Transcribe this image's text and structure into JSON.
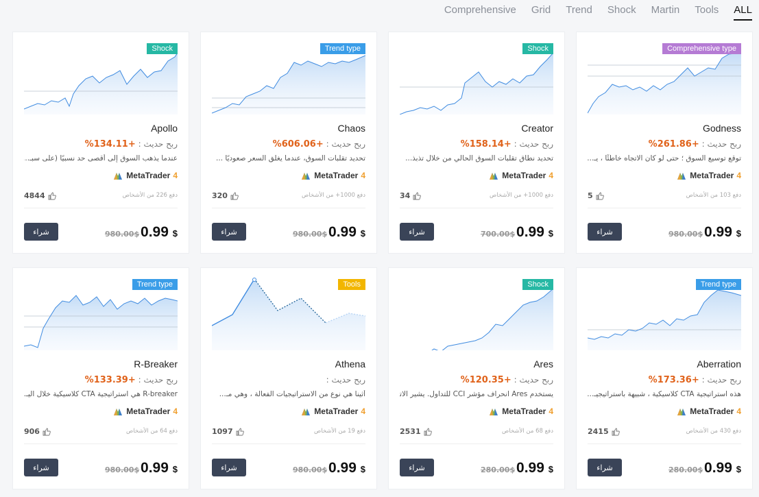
{
  "filters": [
    "Comprehensive",
    "Grid",
    "Trend",
    "Shock",
    "Martin",
    "Tools",
    "ALL"
  ],
  "active_filter": "ALL",
  "platform": {
    "name": "MetaTrader",
    "version": "4"
  },
  "profit_label": "ربح حديث :",
  "buy_label": "شراء",
  "currency": "$",
  "products": [
    {
      "name": "Apollo",
      "badge": "Shock",
      "badge_color": "#26b8a4",
      "profit": "+134.11%",
      "desc": "عندما يذهب السوق إلى أقصى حد نسبيًا (على سبـ...",
      "buyers": "دفع 226 من الأشخاص",
      "likes": "4844",
      "old_price": "980.00$",
      "price": "0.99"
    },
    {
      "name": "Chaos",
      "badge": "Trend type",
      "badge_color": "#3a9de8",
      "profit": "+606.06%",
      "desc": "تحديد تقلبات السوق، عندما يغلق السعر صعوديًا ...",
      "buyers": "دفع 1000+ من الأشخاص",
      "likes": "320",
      "old_price": "980.00$",
      "price": "0.99"
    },
    {
      "name": "Creator",
      "badge": "Shock",
      "badge_color": "#26b8a4",
      "profit": "+158.14%",
      "desc": "تحديد نطاق تقلبات السوق الحالي من خلال تذبذ...",
      "buyers": "دفع 1000+ من الأشخاص",
      "likes": "34",
      "old_price": "700.00$",
      "price": "0.99"
    },
    {
      "name": "Godness",
      "badge": "Comprehensive type",
      "badge_color": "#b57bd4",
      "profit": "+261.86%",
      "desc": "توقع توسيع السوق ؛ حتى لو كان الاتجاه خاطئًا ، يـ...",
      "buyers": "دفع 103 من الأشخاص",
      "likes": "5",
      "old_price": "980.00$",
      "price": "0.99"
    },
    {
      "name": "R-Breaker",
      "badge": "Trend type",
      "badge_color": "#3a9de8",
      "profit": "+133.39%",
      "desc": "R-breaker هي استراتيجية CTA كلاسيكية خلال اليـ...",
      "buyers": "دفع 64 من الأشخاص",
      "likes": "906",
      "old_price": "980.00$",
      "price": "0.99"
    },
    {
      "name": "Athena",
      "badge": "Tools",
      "badge_color": "#f2b600",
      "profit": "",
      "desc": "أثينا هي نوع من الاستراتيجيات الفعالة ، وهي مـ...",
      "buyers": "دفع 19 من الأشخاص",
      "likes": "1097",
      "old_price": "980.00$",
      "price": "0.99"
    },
    {
      "name": "Ares",
      "badge": "Shock",
      "badge_color": "#26b8a4",
      "profit": "+120.35%",
      "desc": "يستخدم Ares انحراف مؤشر CCI للتداول. يشير الاتـ...",
      "buyers": "دفع 68 من الأشخاص",
      "likes": "2531",
      "old_price": "280.00$",
      "price": "0.99"
    },
    {
      "name": "Aberration",
      "badge": "Trend type",
      "badge_color": "#3a9de8",
      "profit": "+173.36%",
      "desc": "هذه استراتيجية CTA كلاسيكية ، شبيهة باستراتيجيـ...",
      "buyers": "دفع 430 من الأشخاص",
      "likes": "2415",
      "old_price": "280.00$",
      "price": "0.99"
    }
  ]
}
